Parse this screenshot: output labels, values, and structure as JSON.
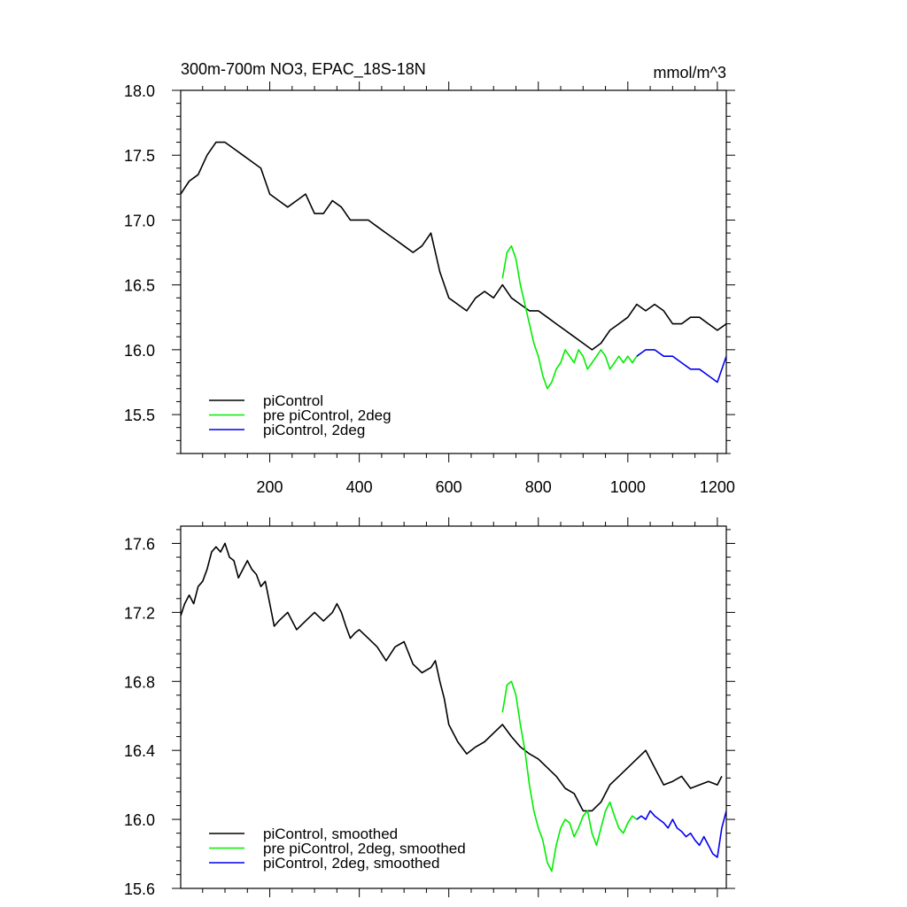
{
  "colors": {
    "black": "#000000",
    "green": "#00ee00",
    "blue": "#0000ee"
  },
  "chart_data": [
    {
      "type": "line",
      "title": "300m-700m NO3, EPAC_18S-18N",
      "units": "mmol/m^3",
      "xlim": [
        1,
        1220
      ],
      "ylim": [
        15.2,
        18.0
      ],
      "x_ticks": [
        200,
        400,
        600,
        800,
        1000,
        1200
      ],
      "y_ticks": [
        15.5,
        16.0,
        16.5,
        17.0,
        17.5,
        18.0
      ],
      "y_tick_labels": [
        "15.5",
        "16.0",
        "16.5",
        "17.0",
        "17.5",
        "18.0"
      ],
      "legend": [
        "piControl",
        "pre piControl, 2deg",
        "piControl, 2deg"
      ],
      "series": [
        {
          "name": "piControl",
          "color": "#000000",
          "x": [
            1,
            20,
            40,
            60,
            80,
            100,
            120,
            140,
            160,
            180,
            200,
            220,
            240,
            260,
            280,
            300,
            320,
            340,
            360,
            380,
            400,
            420,
            440,
            460,
            480,
            500,
            520,
            540,
            560,
            580,
            600,
            620,
            640,
            660,
            680,
            700,
            720,
            740,
            760,
            780,
            800,
            820,
            840,
            860,
            880,
            900,
            920,
            940,
            960,
            980,
            1000,
            1020,
            1040,
            1060,
            1080,
            1100,
            1120,
            1140,
            1160,
            1180,
            1200,
            1220
          ],
          "y": [
            17.2,
            17.3,
            17.35,
            17.5,
            17.6,
            17.6,
            17.55,
            17.5,
            17.45,
            17.4,
            17.2,
            17.15,
            17.1,
            17.15,
            17.2,
            17.05,
            17.05,
            17.15,
            17.1,
            17.0,
            17.0,
            17.0,
            16.95,
            16.9,
            16.85,
            16.8,
            16.75,
            16.8,
            16.9,
            16.6,
            16.4,
            16.35,
            16.3,
            16.4,
            16.45,
            16.4,
            16.5,
            16.4,
            16.35,
            16.3,
            16.3,
            16.25,
            16.2,
            16.15,
            16.1,
            16.05,
            16.0,
            16.05,
            16.15,
            16.2,
            16.25,
            16.35,
            16.3,
            16.35,
            16.3,
            16.2,
            16.2,
            16.25,
            16.25,
            16.2,
            16.15,
            16.2
          ]
        },
        {
          "name": "pre piControl, 2deg",
          "color": "#00ee00",
          "x": [
            720,
            730,
            740,
            750,
            760,
            770,
            780,
            790,
            800,
            810,
            820,
            830,
            840,
            850,
            860,
            870,
            880,
            890,
            900,
            910,
            920,
            930,
            940,
            950,
            960,
            970,
            980,
            990,
            1000,
            1010,
            1020
          ],
          "y": [
            16.55,
            16.75,
            16.8,
            16.7,
            16.5,
            16.35,
            16.2,
            16.05,
            15.95,
            15.8,
            15.7,
            15.75,
            15.85,
            15.9,
            16.0,
            15.95,
            15.9,
            16.0,
            15.95,
            15.85,
            15.9,
            15.95,
            16.0,
            15.95,
            15.85,
            15.9,
            15.95,
            15.9,
            15.95,
            15.9,
            15.95
          ]
        },
        {
          "name": "piControl, 2deg",
          "color": "#0000ee",
          "x": [
            1020,
            1040,
            1060,
            1080,
            1100,
            1120,
            1140,
            1160,
            1180,
            1200,
            1220
          ],
          "y": [
            15.95,
            16.0,
            16.0,
            15.95,
            15.95,
            15.9,
            15.85,
            15.85,
            15.8,
            15.75,
            15.95
          ]
        }
      ]
    },
    {
      "type": "line",
      "xlim": [
        1,
        1220
      ],
      "ylim": [
        15.6,
        17.7
      ],
      "x_ticks": [
        200,
        400,
        600,
        800,
        1000,
        1200
      ],
      "y_ticks": [
        15.6,
        16.0,
        16.4,
        16.8,
        17.2,
        17.6
      ],
      "y_tick_labels": [
        "15.6",
        "16.0",
        "16.4",
        "16.8",
        "17.2",
        "17.6"
      ],
      "legend": [
        "piControl, smoothed",
        "pre piControl, 2deg, smoothed",
        "piControl, 2deg, smoothed"
      ],
      "series": [
        {
          "name": "piControl, smoothed",
          "color": "#000000",
          "x": [
            1,
            10,
            20,
            30,
            40,
            50,
            60,
            70,
            80,
            90,
            100,
            110,
            120,
            130,
            140,
            150,
            160,
            170,
            180,
            190,
            200,
            210,
            220,
            240,
            260,
            280,
            300,
            320,
            340,
            350,
            360,
            370,
            380,
            390,
            400,
            420,
            440,
            460,
            480,
            500,
            520,
            540,
            560,
            570,
            580,
            590,
            600,
            620,
            640,
            660,
            680,
            700,
            720,
            740,
            760,
            780,
            800,
            820,
            840,
            860,
            880,
            900,
            920,
            940,
            960,
            980,
            1000,
            1020,
            1040,
            1060,
            1080,
            1100,
            1120,
            1140,
            1160,
            1180,
            1200,
            1210
          ],
          "y": [
            17.18,
            17.25,
            17.3,
            17.25,
            17.35,
            17.38,
            17.45,
            17.55,
            17.58,
            17.55,
            17.6,
            17.52,
            17.5,
            17.4,
            17.45,
            17.5,
            17.45,
            17.42,
            17.35,
            17.38,
            17.25,
            17.12,
            17.15,
            17.2,
            17.1,
            17.15,
            17.2,
            17.15,
            17.2,
            17.25,
            17.2,
            17.12,
            17.05,
            17.08,
            17.1,
            17.05,
            17.0,
            16.92,
            17.0,
            17.03,
            16.9,
            16.85,
            16.88,
            16.92,
            16.8,
            16.7,
            16.55,
            16.45,
            16.38,
            16.42,
            16.45,
            16.5,
            16.55,
            16.48,
            16.42,
            16.38,
            16.35,
            16.3,
            16.25,
            16.18,
            16.15,
            16.05,
            16.05,
            16.1,
            16.2,
            16.25,
            16.3,
            16.35,
            16.4,
            16.3,
            16.2,
            16.22,
            16.25,
            16.18,
            16.2,
            16.22,
            16.2,
            16.25
          ]
        },
        {
          "name": "pre piControl, 2deg, smoothed",
          "color": "#00ee00",
          "x": [
            720,
            725,
            730,
            740,
            750,
            760,
            770,
            780,
            790,
            800,
            810,
            820,
            830,
            840,
            850,
            860,
            870,
            880,
            890,
            900,
            910,
            920,
            930,
            940,
            950,
            960,
            970,
            980,
            990,
            1000,
            1010,
            1020
          ],
          "y": [
            16.62,
            16.7,
            16.78,
            16.8,
            16.72,
            16.55,
            16.4,
            16.2,
            16.05,
            15.95,
            15.88,
            15.75,
            15.7,
            15.85,
            15.95,
            16.0,
            15.98,
            15.9,
            15.95,
            16.02,
            16.05,
            15.92,
            15.85,
            15.95,
            16.05,
            16.1,
            16.02,
            15.95,
            15.92,
            15.98,
            16.02,
            16.0
          ]
        },
        {
          "name": "piControl, 2deg, smoothed",
          "color": "#0000ee",
          "x": [
            1020,
            1030,
            1040,
            1050,
            1060,
            1070,
            1080,
            1090,
            1100,
            1110,
            1120,
            1130,
            1140,
            1150,
            1160,
            1170,
            1180,
            1190,
            1200,
            1210,
            1220
          ],
          "y": [
            16.0,
            16.02,
            16.0,
            16.05,
            16.02,
            16.0,
            15.98,
            15.95,
            16.0,
            15.95,
            15.93,
            15.9,
            15.92,
            15.88,
            15.85,
            15.9,
            15.85,
            15.8,
            15.78,
            15.95,
            16.05
          ]
        }
      ]
    }
  ]
}
